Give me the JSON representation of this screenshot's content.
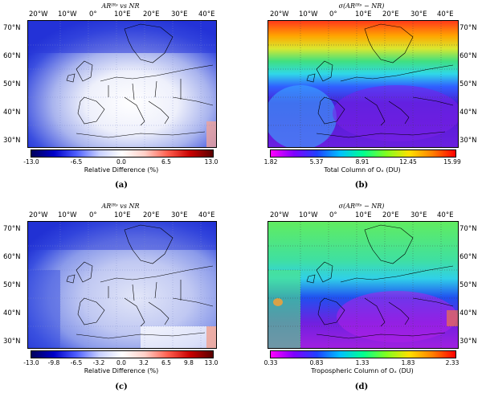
{
  "panels": [
    {
      "id": "a",
      "title": "ARᴵᴿˢ vs NR",
      "lon_labels": [
        "20°W",
        "10°W",
        "0°",
        "10°E",
        "20°E",
        "30°E",
        "40°E"
      ],
      "lat_labels": [
        "70°N",
        "60°N",
        "50°N",
        "40°N",
        "30°N"
      ],
      "lat_side": "left",
      "colormap": "diverging-blue-white-red",
      "cbar_ticks": [
        "-13.0",
        "-6.5",
        "0.0",
        "6.5",
        "13.0"
      ],
      "cbar_label": "Relative Difference (%)",
      "caption": "(a)"
    },
    {
      "id": "b",
      "title": "σ(ARᴵᴿˢ − NR)",
      "lon_labels": [
        "20°W",
        "10°W",
        "0°",
        "10°E",
        "20°E",
        "30°E",
        "40°E"
      ],
      "lat_labels": [
        "70°N",
        "60°N",
        "50°N",
        "40°N",
        "30°N"
      ],
      "lat_side": "right",
      "colormap": "rainbow-magenta-red",
      "cbar_ticks": [
        "1.82",
        "5.37",
        "8.91",
        "12.45",
        "15.99"
      ],
      "cbar_label": "Total Column of Oₓ (DU)",
      "caption": "(b)"
    },
    {
      "id": "c",
      "title": "ARᴵᴿˢ vs NR",
      "lon_labels": [
        "20°W",
        "10°W",
        "0°",
        "10°E",
        "20°E",
        "30°E",
        "40°E"
      ],
      "lat_labels": [
        "70°N",
        "60°N",
        "50°N",
        "40°N",
        "30°N"
      ],
      "lat_side": "left",
      "colormap": "diverging-blue-white-red",
      "cbar_ticks": [
        "-13.0",
        "-9.8",
        "-6.5",
        "-3.2",
        "0.0",
        "3.2",
        "6.5",
        "9.8",
        "13.0"
      ],
      "cbar_label": "Relative Difference (%)",
      "caption": "(c)"
    },
    {
      "id": "d",
      "title": "σ(ARᴵᴿˢ − NR)",
      "lon_labels": [
        "20°W",
        "10°W",
        "0°",
        "10°E",
        "20°E",
        "30°E",
        "40°E"
      ],
      "lat_labels": [
        "70°N",
        "60°N",
        "50°N",
        "40°N",
        "30°N"
      ],
      "lat_side": "right",
      "colormap": "rainbow-magenta-red",
      "cbar_ticks": [
        "0.33",
        "0.83",
        "1.33",
        "1.83",
        "2.33"
      ],
      "cbar_label": "Tropospheric Column of Oₓ (DU)",
      "caption": "(d)"
    }
  ]
}
